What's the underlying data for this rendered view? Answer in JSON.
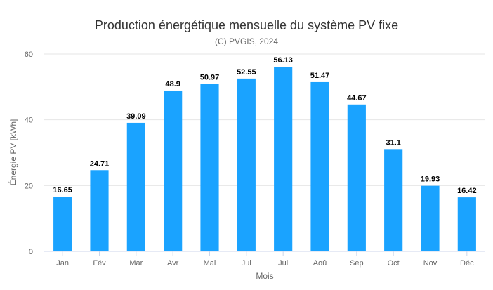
{
  "chart_data": {
    "type": "bar",
    "title": "Production énergétique mensuelle du système PV fixe",
    "subtitle": "(C) PVGIS, 2024",
    "xlabel": "Mois",
    "ylabel": "Énergie PV [kWh]",
    "categories": [
      "Jan",
      "Fév",
      "Mar",
      "Avr",
      "Mai",
      "Jui",
      "Jui",
      "Aoû",
      "Sep",
      "Oct",
      "Nov",
      "Déc"
    ],
    "values": [
      16.65,
      24.71,
      39.09,
      48.9,
      50.97,
      52.55,
      56.13,
      51.47,
      44.67,
      31.1,
      19.93,
      16.42
    ],
    "ylim": [
      0,
      60
    ],
    "yticks": [
      0,
      20,
      40,
      60
    ],
    "grid": true,
    "legend": "none",
    "bar_color": "#1aa3ff"
  }
}
